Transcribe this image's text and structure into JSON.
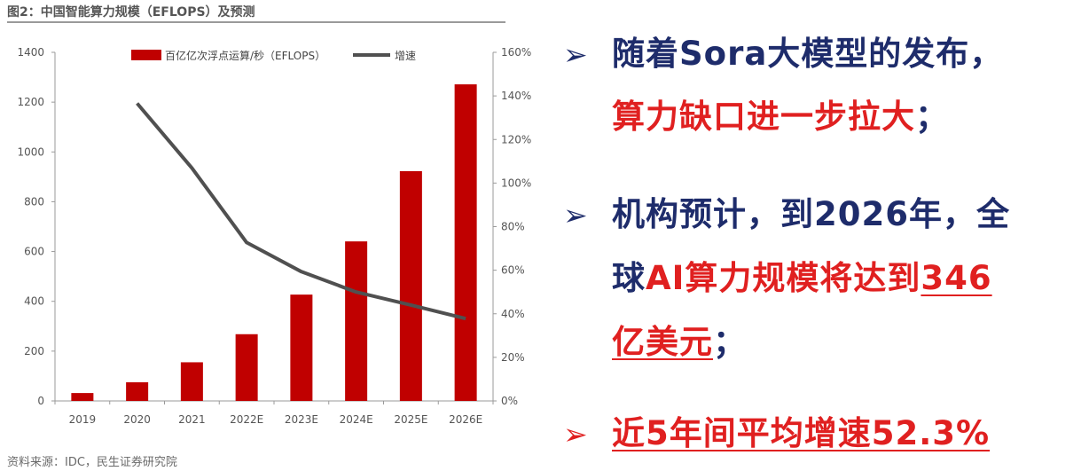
{
  "figure": {
    "title": "图2：中国智能算力规模（EFLOPS）及预测",
    "source": "资料来源：IDC，民生证券研究院"
  },
  "chart_data": {
    "type": "bar",
    "categories": [
      "2019",
      "2020",
      "2021",
      "2022E",
      "2023E",
      "2024E",
      "2025E",
      "2026E"
    ],
    "series": [
      {
        "name": "百亿亿次浮点运算/秒（EFLOPS）",
        "type": "bar",
        "axis": "left",
        "values": [
          31.7,
          75.0,
          155.2,
          268.0,
          427.0,
          640.7,
          922.8,
          1271.4
        ]
      },
      {
        "name": "增速",
        "type": "line",
        "axis": "right",
        "unit": "%",
        "values": [
          null,
          136.6,
          106.9,
          72.7,
          59.3,
          50.0,
          44.0,
          37.8
        ]
      }
    ],
    "ylim": [
      0,
      1400
    ],
    "y_ticks": [
      "1400",
      "1200",
      "1000",
      "800",
      "600",
      "400",
      "200",
      "0"
    ],
    "y2lim": [
      0,
      160
    ],
    "y2_ticks": [
      "160%",
      "140%",
      "120%",
      "100%",
      "80%",
      "60%",
      "40%",
      "20%",
      "0%"
    ],
    "legend_position": "top-center",
    "colors": {
      "bar": "#c00000",
      "line": "#505050"
    }
  },
  "bullets": {
    "arrow": "➢",
    "b1_l1": "随着Sora大模型的发布，",
    "b1_l2": "算力缺口进一步拉大",
    "b1_l2_end": "；",
    "b2_l1": "机构预计，到2026年，全",
    "b2_l2a": "球",
    "b2_l2b": "AI算力规模将达到",
    "b2_l2c": "346",
    "b2_l3a": "亿美元",
    "b2_l3b": "；",
    "b3": "近5年间平均增速52.3%"
  },
  "colors": {
    "blue": "#1e2c6b",
    "red": "#e02020"
  }
}
